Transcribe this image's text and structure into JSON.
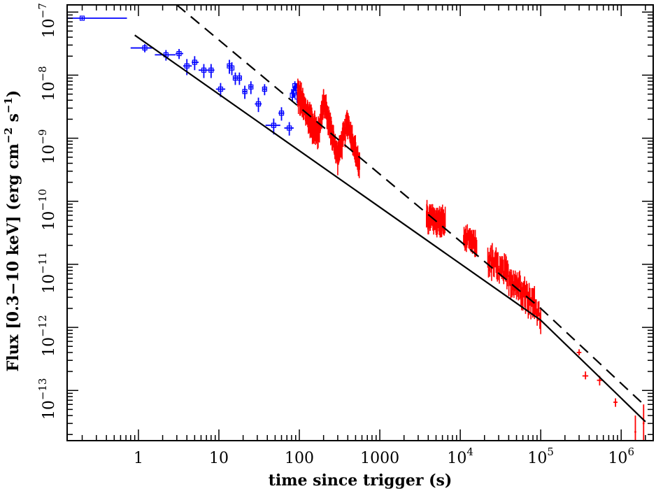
{
  "chart_data": {
    "type": "scatter",
    "xscale": "log",
    "yscale": "log",
    "xlim": [
      0.13,
      2500000
    ],
    "ylim": [
      1.6e-14,
      1.3e-07
    ],
    "xlabel": "time since trigger (s)",
    "ylabel": "Flux [0.3−10 keV] (erg cm−2 s−1)",
    "xticks": [
      {
        "value": 1,
        "label": "1"
      },
      {
        "value": 10,
        "label": "10"
      },
      {
        "value": 100,
        "label": "100"
      },
      {
        "value": 1000,
        "label": "1000"
      },
      {
        "value": 10000,
        "label": "10",
        "exp": "4"
      },
      {
        "value": 100000,
        "label": "10",
        "exp": "5"
      },
      {
        "value": 1000000,
        "label": "10",
        "exp": "6"
      }
    ],
    "yticks": [
      {
        "value": 1e-13,
        "label": "10",
        "exp": "−13"
      },
      {
        "value": 1e-12,
        "label": "10",
        "exp": "−12"
      },
      {
        "value": 1e-11,
        "label": "10",
        "exp": "−11"
      },
      {
        "value": 1e-10,
        "label": "10",
        "exp": "−10"
      },
      {
        "value": 1e-09,
        "label": "10",
        "exp": "−9"
      },
      {
        "value": 1e-08,
        "label": "10",
        "exp": "−8"
      },
      {
        "value": 1e-07,
        "label": "10",
        "exp": "−7"
      }
    ],
    "colors": {
      "bat": "#0000ff",
      "xrt": "#ff0000",
      "model": "#000000"
    },
    "series": [
      {
        "color": "#0000ff",
        "style": "points-with-errorbars",
        "points": [
          {
            "x": 0.2,
            "y": 8e-08,
            "xlo": 0.13,
            "xhi": 0.72,
            "ylo": 7.6e-08,
            "yhi": 8.4e-08
          },
          {
            "x": 1.2,
            "y": 2.7e-08,
            "xlo": 0.8,
            "xhi": 1.55,
            "ylo": 2.3e-08,
            "yhi": 3.1e-08
          },
          {
            "x": 2.2,
            "y": 2.1e-08,
            "xlo": 1.6,
            "xhi": 2.9,
            "ylo": 1.7e-08,
            "yhi": 2.5e-08
          },
          {
            "x": 3.2,
            "y": 2.2e-08,
            "xlo": 2.9,
            "xhi": 3.6,
            "ylo": 1.8e-08,
            "yhi": 2.6e-08
          },
          {
            "x": 4.0,
            "y": 1.4e-08,
            "xlo": 3.6,
            "xhi": 4.6,
            "ylo": 1e-08,
            "yhi": 1.8e-08
          },
          {
            "x": 5.0,
            "y": 1.6e-08,
            "xlo": 4.6,
            "xhi": 5.6,
            "ylo": 1.2e-08,
            "yhi": 2e-08
          },
          {
            "x": 6.5,
            "y": 1.2e-08,
            "xlo": 5.6,
            "xhi": 7.4,
            "ylo": 9e-09,
            "yhi": 1.5e-08
          },
          {
            "x": 8.0,
            "y": 1.2e-08,
            "xlo": 7.4,
            "xhi": 8.8,
            "ylo": 9e-09,
            "yhi": 1.5e-08
          },
          {
            "x": 10.5,
            "y": 6e-09,
            "xlo": 9.2,
            "xhi": 12.0,
            "ylo": 4.5e-09,
            "yhi": 7.5e-09
          },
          {
            "x": 13.5,
            "y": 1.4e-08,
            "xlo": 12.8,
            "xhi": 14.2,
            "ylo": 1.05e-08,
            "yhi": 1.75e-08
          },
          {
            "x": 14.5,
            "y": 1.3e-08,
            "xlo": 14.0,
            "xhi": 15.0,
            "ylo": 1e-08,
            "yhi": 1.6e-08
          },
          {
            "x": 16.0,
            "y": 9e-09,
            "xlo": 15.2,
            "xhi": 16.8,
            "ylo": 7e-09,
            "yhi": 1.1e-08
          },
          {
            "x": 18.0,
            "y": 9e-09,
            "xlo": 17.0,
            "xhi": 19.0,
            "ylo": 7e-09,
            "yhi": 1.1e-08
          },
          {
            "x": 21.0,
            "y": 5.5e-09,
            "xlo": 19.5,
            "xhi": 22.5,
            "ylo": 4.2e-09,
            "yhi": 6.8e-09
          },
          {
            "x": 25.0,
            "y": 6.5e-09,
            "xlo": 23.5,
            "xhi": 26.5,
            "ylo": 5e-09,
            "yhi": 8e-09
          },
          {
            "x": 31.0,
            "y": 3.5e-09,
            "xlo": 28.0,
            "xhi": 34.0,
            "ylo": 2.6e-09,
            "yhi": 4.4e-09
          },
          {
            "x": 37.0,
            "y": 6e-09,
            "xlo": 35.0,
            "xhi": 39.0,
            "ylo": 4.8e-09,
            "yhi": 7.2e-09
          },
          {
            "x": 48.0,
            "y": 1.6e-09,
            "xlo": 38.0,
            "xhi": 58.0,
            "ylo": 1.15e-09,
            "yhi": 2.05e-09
          },
          {
            "x": 60.0,
            "y": 2.5e-09,
            "xlo": 55.0,
            "xhi": 65.0,
            "ylo": 1.9e-09,
            "yhi": 3.1e-09
          },
          {
            "x": 75.0,
            "y": 1.45e-09,
            "xlo": 65.0,
            "xhi": 85.0,
            "ylo": 1.1e-09,
            "yhi": 1.8e-09
          },
          {
            "x": 82.0,
            "y": 4.8e-09,
            "xlo": 80.0,
            "xhi": 84.0,
            "ylo": 3.8e-09,
            "yhi": 5.8e-09
          },
          {
            "x": 85.0,
            "y": 5.5e-09,
            "xlo": 83.0,
            "xhi": 87.0,
            "ylo": 4.4e-09,
            "yhi": 6.6e-09
          },
          {
            "x": 88.0,
            "y": 6.8e-09,
            "xlo": 86.0,
            "xhi": 90.0,
            "ylo": 5.6e-09,
            "yhi": 8e-09
          },
          {
            "x": 91.0,
            "y": 6.2e-09,
            "xlo": 89.0,
            "xhi": 93.0,
            "ylo": 5e-09,
            "yhi": 7.4e-09
          },
          {
            "x": 94.0,
            "y": 4.5e-09,
            "xlo": 92.0,
            "xhi": 96.0,
            "ylo": 3.6e-09,
            "yhi": 5.4e-09
          }
        ]
      },
      {
        "color": "#ff0000",
        "style": "dense-errorbars",
        "segments": [
          {
            "t0": 95,
            "t1": 170,
            "f0": 5e-09,
            "f1": 1.1e-09,
            "n": 70,
            "scatter": 0.12,
            "err": 0.16
          },
          {
            "t0": 170,
            "t1": 200,
            "f0": 1.1e-09,
            "f1": 3.8e-09,
            "n": 22,
            "scatter": 0.1,
            "err": 0.14
          },
          {
            "t0": 200,
            "t1": 300,
            "f0": 3.8e-09,
            "f1": 5e-10,
            "n": 50,
            "scatter": 0.1,
            "err": 0.14
          },
          {
            "t0": 300,
            "t1": 400,
            "f0": 5e-10,
            "f1": 1.8e-09,
            "n": 30,
            "scatter": 0.1,
            "err": 0.14
          },
          {
            "t0": 400,
            "t1": 560,
            "f0": 1.8e-09,
            "f1": 3.5e-10,
            "n": 40,
            "scatter": 0.1,
            "err": 0.14
          },
          {
            "t0": 3800,
            "t1": 6500,
            "f0": 5.5e-11,
            "f1": 4.5e-11,
            "n": 70,
            "scatter": 0.11,
            "err": 0.14
          },
          {
            "t0": 11000,
            "t1": 16000,
            "f0": 2.6e-11,
            "f1": 2e-11,
            "n": 28,
            "scatter": 0.09,
            "err": 0.12
          },
          {
            "t0": 22000,
            "t1": 60000,
            "f0": 1.2e-11,
            "f1": 4e-12,
            "n": 55,
            "scatter": 0.13,
            "err": 0.17
          },
          {
            "t0": 60000,
            "t1": 100000,
            "f0": 3.8e-12,
            "f1": 1.6e-12,
            "n": 20,
            "scatter": 0.12,
            "err": 0.2
          }
        ],
        "points": [
          {
            "x": 300000,
            "y": 4e-13,
            "xlo": 280000,
            "xhi": 320000,
            "ylo": 3.6e-13,
            "yhi": 4.5e-13
          },
          {
            "x": 360000,
            "y": 1.7e-13,
            "xlo": 330000,
            "xhi": 390000,
            "ylo": 1.5e-13,
            "yhi": 2e-13
          },
          {
            "x": 540000,
            "y": 1.45e-13,
            "xlo": 500000,
            "xhi": 580000,
            "ylo": 1.2e-13,
            "yhi": 1.7e-13
          },
          {
            "x": 850000,
            "y": 6.5e-14,
            "xlo": 800000,
            "xhi": 900000,
            "ylo": 5.5e-14,
            "yhi": 7.5e-14
          },
          {
            "x": 1500000,
            "y": 2.2e-14,
            "xlo": 1460000,
            "xhi": 1540000,
            "ylo": 1.6e-14,
            "yhi": 4e-14
          },
          {
            "x": 1900000,
            "y": 3e-14,
            "xlo": 1850000,
            "xhi": 1950000,
            "ylo": 1.6e-14,
            "yhi": 6e-14
          }
        ]
      },
      {
        "color": "#000000",
        "style": "solid-line",
        "points": [
          {
            "x": 0.9,
            "y": 4.3e-08
          },
          {
            "x": 100000,
            "y": 1.3e-12
          },
          {
            "x": 2000000,
            "y": 3.2e-14
          }
        ]
      },
      {
        "color": "#000000",
        "style": "dashed-line",
        "points": [
          {
            "x": 3.0,
            "y": 1.3e-07
          },
          {
            "x": 100000,
            "y": 2e-12
          },
          {
            "x": 1900000,
            "y": 6e-14
          }
        ]
      }
    ]
  }
}
